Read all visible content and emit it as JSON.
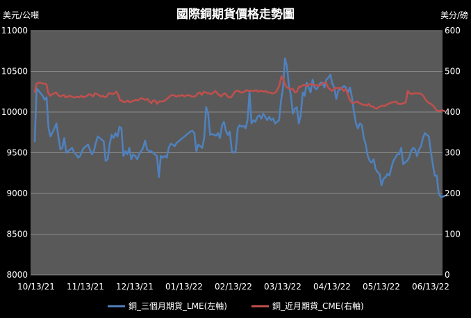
{
  "chart_data": {
    "type": "line",
    "title": "國際銅期貨價格走勢圖",
    "left_unit": "美元/公噸",
    "right_unit": "美分/磅",
    "y_left_lim": [
      8000,
      11000
    ],
    "y_left_ticks": [
      "8000",
      "8500",
      "9000",
      "9500",
      "10000",
      "10500",
      "11000"
    ],
    "y_right_lim": [
      0,
      600
    ],
    "y_right_ticks": [
      "0",
      "100",
      "200",
      "300",
      "400",
      "500",
      "600"
    ],
    "x_ticks": [
      "10/13/21",
      "11/13/21",
      "12/13/21",
      "01/13/22",
      "02/13/22",
      "03/13/22",
      "04/13/22",
      "05/13/22",
      "06/13/22"
    ],
    "grid": true,
    "legend_position": "bottom",
    "plot_background": "#595959",
    "series": [
      {
        "name": "銅_三個月期貨_LME(左軸)",
        "axis": "left",
        "color": "#4f81bd",
        "values": [
          9640,
          10290,
          10260,
          10230,
          10200,
          10150,
          10180,
          9800,
          9700,
          9750,
          9800,
          9860,
          9700,
          9540,
          9560,
          9680,
          9500,
          9520,
          9540,
          9560,
          9500,
          9480,
          9440,
          9460,
          9520,
          9560,
          9580,
          9600,
          9540,
          9480,
          9520,
          9620,
          9700,
          9680,
          9660,
          9640,
          9400,
          9420,
          9600,
          9720,
          9680,
          9740,
          9700,
          9820,
          9800,
          9460,
          9520,
          9480,
          9560,
          9420,
          9480,
          9460,
          9420,
          9480,
          9520,
          9560,
          9650,
          9540,
          9520,
          9520,
          9500,
          9480,
          9460,
          9200,
          9460,
          9440,
          9460,
          9440,
          9560,
          9610,
          9600,
          9580,
          9620,
          9640,
          9660,
          9680,
          9700,
          9720,
          9740,
          9760,
          9770,
          9740,
          9520,
          9600,
          9580,
          9560,
          9680,
          10060,
          9980,
          9720,
          9730,
          9720,
          9710,
          9740,
          9680,
          9830,
          9880,
          9770,
          9720,
          9760,
          9520,
          9500,
          9520,
          9800,
          9840,
          9820,
          9830,
          9800,
          9900,
          10240,
          9860,
          9900,
          9880,
          9940,
          9960,
          9920,
          9980,
          9940,
          9900,
          9940,
          9900,
          9920,
          9860,
          9880,
          9900,
          10140,
          10300,
          10660,
          10560,
          10320,
          10200,
          9980,
          10040,
          10060,
          9860,
          9960,
          10240,
          10200,
          10360,
          10300,
          10240,
          10400,
          10300,
          10280,
          10320,
          10360,
          10360,
          10300,
          10400,
          10420,
          10460,
          10350,
          10300,
          10160,
          10260,
          10280,
          10300,
          10320,
          10300,
          10240,
          10300,
          10180,
          10000,
          9860,
          9800,
          9860,
          9840,
          9680,
          9600,
          9460,
          9400,
          9380,
          9420,
          9300,
          9260,
          9240,
          9100,
          9180,
          9200,
          9240,
          9220,
          9320,
          9400,
          9440,
          9480,
          9480,
          9560,
          9360,
          9380,
          9400,
          9440,
          9520,
          9560,
          9540,
          9460,
          9540,
          9580,
          9680,
          9740,
          9720,
          9700,
          9520,
          9360,
          9220,
          9220,
          9000,
          8960,
          8960,
          8970
        ]
      },
      {
        "name": "銅_近月期貨_CME(右軸)",
        "axis": "right",
        "color": "#c0504d",
        "values": [
          450,
          470,
          472,
          472,
          470,
          470,
          468,
          446,
          440,
          444,
          446,
          448,
          442,
          438,
          440,
          442,
          436,
          438,
          440,
          438,
          436,
          436,
          438,
          436,
          440,
          436,
          438,
          440,
          444,
          442,
          438,
          446,
          444,
          442,
          438,
          440,
          436,
          438,
          446,
          446,
          444,
          446,
          450,
          442,
          428,
          428,
          424,
          426,
          428,
          424,
          426,
          428,
          430,
          428,
          432,
          434,
          432,
          430,
          432,
          426,
          422,
          428,
          428,
          420,
          426,
          426,
          426,
          428,
          432,
          436,
          440,
          442,
          440,
          438,
          440,
          440,
          442,
          438,
          440,
          442,
          440,
          438,
          438,
          440,
          446,
          448,
          442,
          450,
          448,
          446,
          446,
          444,
          448,
          452,
          446,
          442,
          438,
          444,
          446,
          440,
          436,
          436,
          442,
          450,
          452,
          452,
          448,
          448,
          450,
          454,
          452,
          452,
          452,
          452,
          454,
          450,
          452,
          452,
          450,
          452,
          448,
          448,
          446,
          446,
          448,
          456,
          466,
          488,
          480,
          466,
          460,
          458,
          456,
          456,
          448,
          450,
          462,
          462,
          466,
          466,
          464,
          468,
          468,
          468,
          466,
          466,
          464,
          466,
          470,
          472,
          472,
          460,
          456,
          452,
          456,
          460,
          458,
          460,
          458,
          452,
          456,
          446,
          432,
          424,
          422,
          424,
          426,
          422,
          420,
          418,
          418,
          416,
          420,
          414,
          414,
          410,
          408,
          412,
          414,
          416,
          414,
          418,
          420,
          422,
          424,
          424,
          426,
          420,
          420,
          420,
          422,
          424,
          452,
          446,
          444,
          446,
          446,
          446,
          446,
          444,
          440,
          432,
          426,
          422,
          420,
          416,
          410,
          404,
          402,
          404,
          404,
          402
        ]
      }
    ]
  }
}
